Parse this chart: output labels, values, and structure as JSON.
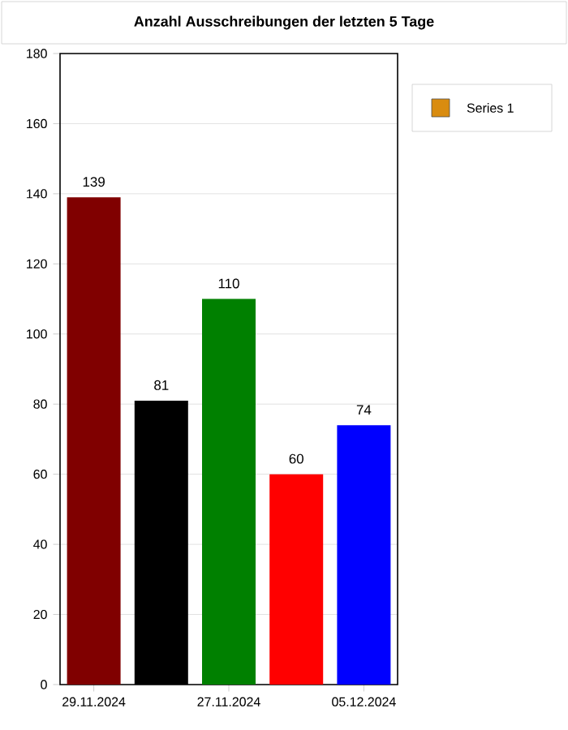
{
  "chart_data": {
    "type": "bar",
    "title": "Anzahl Ausschreibungen der letzten 5 Tage",
    "categories": [
      "29.11.2024",
      null,
      "27.11.2024",
      null,
      "05.12.2024"
    ],
    "series": [
      {
        "name": "Series 1",
        "color": "#d98c10",
        "colors": [
          "#800000",
          "#000000",
          "#008000",
          "#ff0000",
          "#0000ff"
        ],
        "values": [
          139,
          81,
          110,
          60,
          74
        ]
      }
    ],
    "ylim": [
      0,
      180
    ],
    "yticks": [
      0,
      20,
      40,
      60,
      80,
      100,
      120,
      140,
      160,
      180
    ],
    "grid": "y",
    "legend": "top right",
    "data_labels": true
  }
}
